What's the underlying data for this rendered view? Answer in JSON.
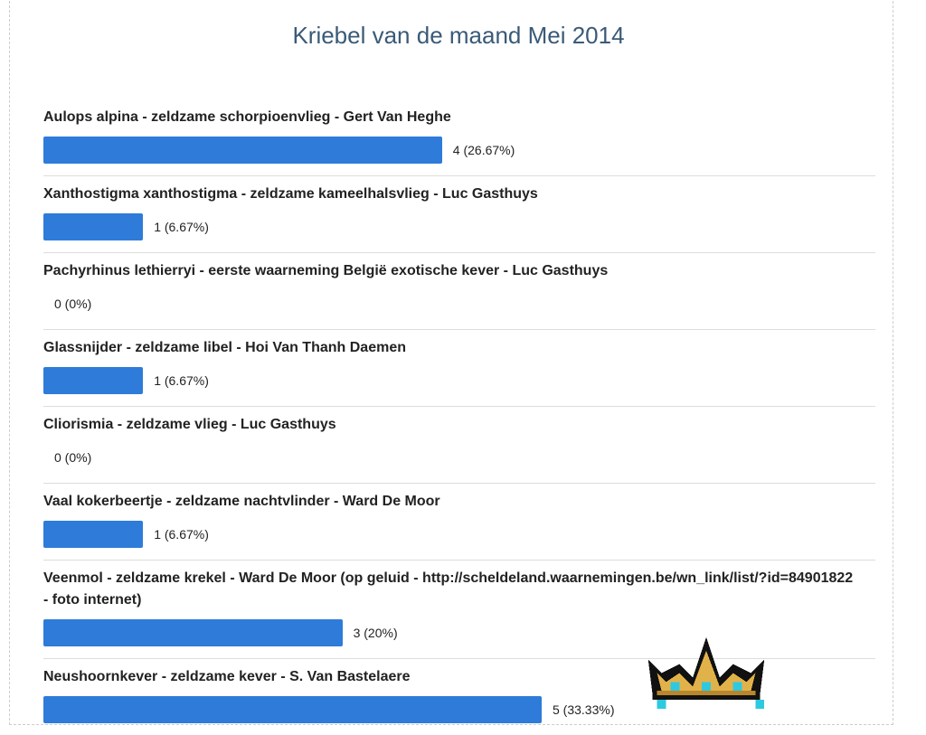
{
  "chart_data": {
    "type": "bar",
    "orientation": "horizontal",
    "title": "Kriebel van de maand Mei 2014",
    "categories": [
      "Aulops alpina - zeldzame schorpioenvlieg - Gert Van Heghe",
      "Xanthostigma xanthostigma - zeldzame kameelhalsvlieg - Luc Gasthuys",
      "Pachyrhinus lethierryi - eerste waarneming België exotische kever - Luc Gasthuys",
      "Glassnijder - zeldzame libel - Hoi Van Thanh Daemen",
      "Cliorismia - zeldzame vlieg - Luc Gasthuys",
      "Vaal kokerbeertje - zeldzame nachtvlinder - Ward De Moor",
      "Veenmol - zeldzame krekel - Ward De Moor (op geluid - http://scheldeland.waarnemingen.be/wn_link/list/?id=84901822 - foto internet)",
      "Neushoornkever - zeldzame kever - S. Van Bastelaere"
    ],
    "values": [
      4,
      1,
      0,
      1,
      0,
      1,
      3,
      5
    ],
    "value_labels": [
      "4 (26.67%)",
      "1 (6.67%)",
      "0 (0%)",
      "1 (6.67%)",
      "0 (0%)",
      "1 (6.67%)",
      "3 (20%)",
      "5 (33.33%)"
    ],
    "color": "#2e7bd9"
  }
}
